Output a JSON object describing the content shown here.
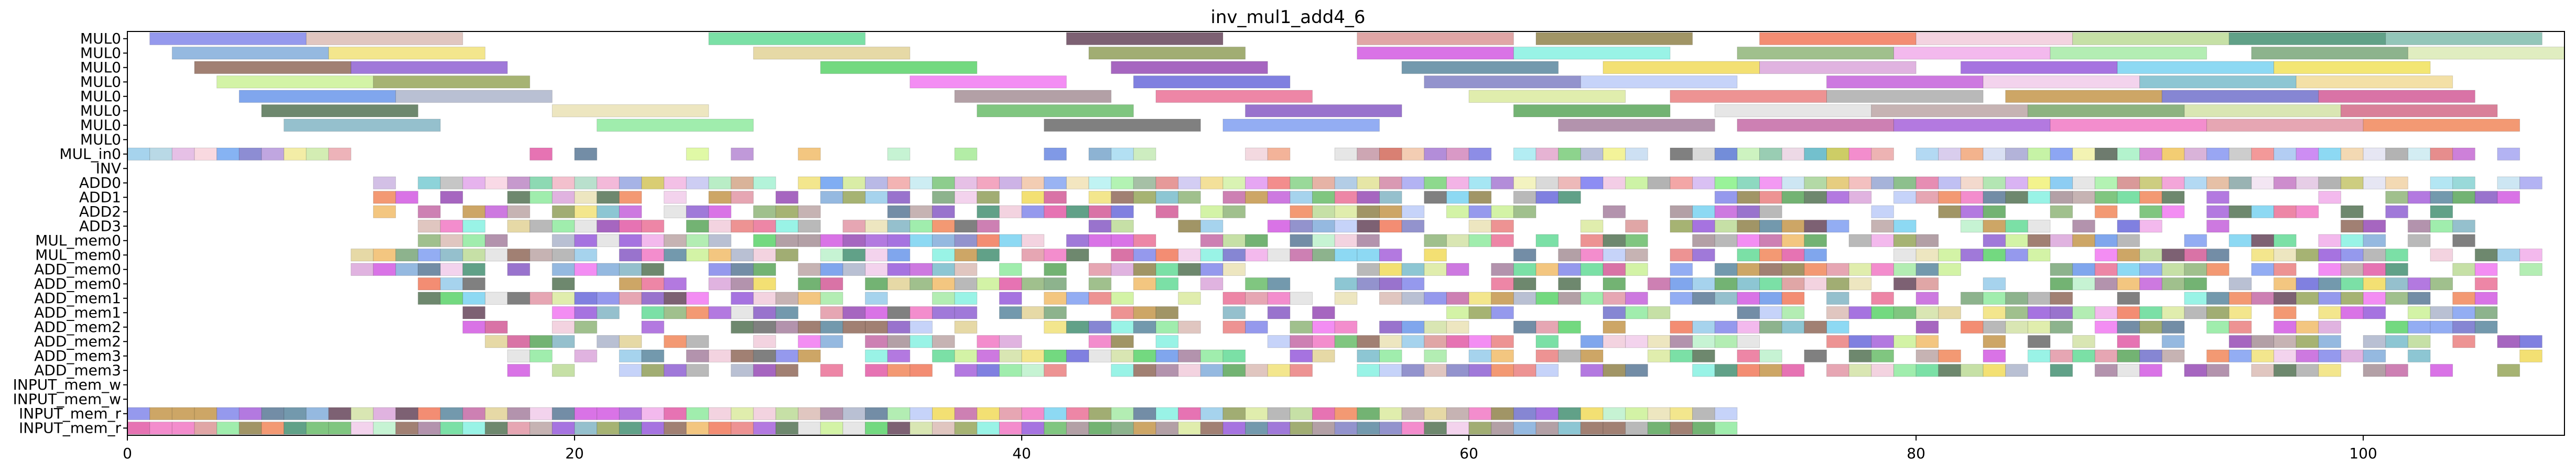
{
  "chart_data": {
    "type": "gantt",
    "title": "inv_mul1_add4_6",
    "xlabel": "",
    "ylabel": "",
    "xlim": [
      0,
      109
    ],
    "x_ticks": [
      0,
      20,
      40,
      60,
      80,
      100
    ],
    "grid": false,
    "legend": "none",
    "rows": [
      "MUL0",
      "MUL0",
      "MUL0",
      "MUL0",
      "MUL0",
      "MUL0",
      "MUL0",
      "MUL0",
      "MUL_in0",
      "INV",
      "ADD0",
      "ADD1",
      "ADD2",
      "ADD3",
      "MUL_mem0",
      "MUL_mem0",
      "ADD_mem0",
      "ADD_mem0",
      "ADD_mem1",
      "ADD_mem1",
      "ADD_mem2",
      "ADD_mem2",
      "ADD_mem3",
      "ADD_mem3",
      "INPUT_mem_w",
      "INPUT_mem_w",
      "INPUT_mem_r",
      "INPUT_mem_r"
    ],
    "series": [
      {
        "row": 0,
        "intervals": [
          [
            1,
            8,
            "#7b80e8"
          ],
          [
            8,
            15,
            "#d8b8b0"
          ],
          [
            26,
            33,
            "#5ad890"
          ],
          [
            42,
            49,
            "#5c3a50"
          ],
          [
            55,
            62,
            "#d89090"
          ],
          [
            63,
            70,
            "#8a7a40"
          ],
          [
            73,
            80,
            "#f07050"
          ],
          [
            80,
            87,
            "#f0c8d8"
          ],
          [
            87,
            94,
            "#b8d890"
          ],
          [
            94,
            101,
            "#3a8a6a"
          ],
          [
            101,
            108,
            "#78b8a8"
          ]
        ]
      },
      {
        "row": 1,
        "intervals": [
          [
            2,
            9,
            "#7aa8d8"
          ],
          [
            9,
            16,
            "#f0e070"
          ],
          [
            28,
            35,
            "#e0d090"
          ],
          [
            43,
            50,
            "#8a9850"
          ],
          [
            55,
            62,
            "#d050e0"
          ],
          [
            62,
            69,
            "#80f0e0"
          ],
          [
            72,
            79,
            "#88b070"
          ],
          [
            79,
            86,
            "#f0a8e8"
          ],
          [
            86,
            93,
            "#a0e8a0"
          ],
          [
            95,
            102,
            "#70a070"
          ],
          [
            102,
            109,
            "#d8e8b0"
          ]
        ]
      },
      {
        "row": 2,
        "intervals": [
          [
            3,
            10,
            "#8a6050"
          ],
          [
            10,
            17,
            "#8858d0"
          ],
          [
            31,
            38,
            "#50d060"
          ],
          [
            44,
            51,
            "#9040b0"
          ],
          [
            57,
            64,
            "#508098"
          ],
          [
            66,
            73,
            "#f0d850"
          ],
          [
            73,
            80,
            "#d8a0d8"
          ],
          [
            82,
            89,
            "#9050d8"
          ],
          [
            89,
            96,
            "#70d0f0"
          ],
          [
            96,
            103,
            "#f0e050"
          ]
        ]
      },
      {
        "row": 3,
        "intervals": [
          [
            4,
            11,
            "#c8f090"
          ],
          [
            11,
            18,
            "#90a050"
          ],
          [
            35,
            42,
            "#f070f0"
          ],
          [
            45,
            52,
            "#6060d8"
          ],
          [
            58,
            65,
            "#7878c0"
          ],
          [
            65,
            72,
            "#b8c8f8"
          ],
          [
            76,
            83,
            "#c058d8"
          ],
          [
            83,
            90,
            "#f0c8e8"
          ],
          [
            90,
            97,
            "#70b8c8"
          ],
          [
            97,
            104,
            "#f0d890"
          ]
        ]
      },
      {
        "row": 4,
        "intervals": [
          [
            5,
            12,
            "#6090e8"
          ],
          [
            12,
            19,
            "#a8b0c8"
          ],
          [
            37,
            44,
            "#a08890"
          ],
          [
            46,
            53,
            "#e86890"
          ],
          [
            60,
            67,
            "#d8e898"
          ],
          [
            69,
            76,
            "#e87878"
          ],
          [
            76,
            83,
            "#a8a8a8"
          ],
          [
            84,
            91,
            "#c09040"
          ],
          [
            91,
            98,
            "#6868c8"
          ],
          [
            98,
            105,
            "#d05090"
          ]
        ]
      },
      {
        "row": 5,
        "intervals": [
          [
            6,
            13,
            "#4a6a4a"
          ],
          [
            19,
            26,
            "#e8e0b0"
          ],
          [
            38,
            45,
            "#60b860"
          ],
          [
            50,
            57,
            "#8050c0"
          ],
          [
            62,
            69,
            "#50a050"
          ],
          [
            71,
            78,
            "#e0e0e0"
          ],
          [
            78,
            85,
            "#b8a0a0"
          ],
          [
            85,
            92,
            "#70a060"
          ],
          [
            92,
            99,
            "#d0e0a0"
          ],
          [
            99,
            106,
            "#d06080"
          ]
        ]
      },
      {
        "row": 6,
        "intervals": [
          [
            7,
            14,
            "#7ab0c0"
          ],
          [
            21,
            28,
            "#88e898"
          ],
          [
            41,
            48,
            "#606060"
          ],
          [
            49,
            56,
            "#7898f0"
          ],
          [
            64,
            71,
            "#a07898"
          ],
          [
            72,
            79,
            "#c060a0"
          ],
          [
            79,
            86,
            "#a058d8"
          ],
          [
            86,
            93,
            "#f070c0"
          ],
          [
            93,
            100,
            "#e090a0"
          ],
          [
            100,
            107,
            "#f08050"
          ]
        ]
      },
      {
        "row": 8,
        "ticks": [
          [
            0,
            "#90c8e8"
          ],
          [
            1,
            "#a8d0e0"
          ],
          [
            2,
            "#e0b0e0"
          ],
          [
            3,
            "#f8d0d8"
          ],
          [
            4,
            "#68a0f0"
          ],
          [
            5,
            "#7070c8"
          ],
          [
            6,
            "#b090d8"
          ],
          [
            7,
            "#f0e890"
          ],
          [
            8,
            "#c8e8a0"
          ],
          [
            9,
            "#e8a0a8"
          ],
          [
            18,
            "#e050a0"
          ],
          [
            20,
            "#507090"
          ],
          [
            25,
            "#d8f890"
          ],
          [
            27,
            "#b080d0"
          ],
          [
            30,
            "#f0b860"
          ],
          [
            34,
            "#b8f0c8"
          ],
          [
            37,
            "#a0e890"
          ],
          [
            41,
            "#6080e0"
          ],
          [
            43,
            "#70a0c8"
          ],
          [
            44,
            "#a0d8f0"
          ],
          [
            45,
            "#c0e8b0"
          ],
          [
            50,
            "#f0d0d8"
          ],
          [
            51,
            "#f0a080"
          ],
          [
            54,
            "#e0e0e0"
          ],
          [
            55,
            "#c090a0"
          ],
          [
            56,
            "#d06050"
          ],
          [
            57,
            "#f0c0a0"
          ],
          [
            58,
            "#a070d0"
          ],
          [
            59,
            "#d080b8"
          ],
          [
            60,
            "#7070e0"
          ],
          [
            62,
            "#a0e8f0"
          ],
          [
            63,
            "#e0a0c8"
          ],
          [
            64,
            "#70c870"
          ],
          [
            65,
            "#a8b0d0"
          ],
          [
            66,
            "#f0f080"
          ],
          [
            67,
            "#c0d8f0"
          ],
          [
            69,
            "#606060"
          ],
          [
            70,
            "#d0d0d0"
          ],
          [
            71,
            "#5070d0"
          ],
          [
            72,
            "#c0f0b0"
          ],
          [
            73,
            "#80c0a0"
          ],
          [
            74,
            "#e8d0e0"
          ],
          [
            75,
            "#50b0c0"
          ],
          [
            76,
            "#c0c040"
          ],
          [
            77,
            "#f070c0"
          ],
          [
            78,
            "#e8a0a0"
          ],
          [
            80,
            "#a0d0f0"
          ],
          [
            81,
            "#d0c0e8"
          ],
          [
            82,
            "#f0a070"
          ],
          [
            83,
            "#d0d8f0"
          ],
          [
            84,
            "#a0a0d0"
          ],
          [
            85,
            "#b8f090"
          ],
          [
            86,
            "#7090f0"
          ],
          [
            87,
            "#f0f0a0"
          ],
          [
            88,
            "#4a5a4a"
          ],
          [
            89,
            "#a0f0c0"
          ],
          [
            90,
            "#d070d0"
          ],
          [
            91,
            "#f0c050"
          ],
          [
            92,
            "#d0a0d0"
          ],
          [
            93,
            "#8090f0"
          ],
          [
            94,
            "#c0c0c0"
          ],
          [
            95,
            "#f08080"
          ],
          [
            96,
            "#a0c0f0"
          ],
          [
            97,
            "#c070f0"
          ],
          [
            98,
            "#70d0f0"
          ],
          [
            99,
            "#f0d0a0"
          ],
          [
            100,
            "#e0e0f0"
          ],
          [
            101,
            "#a0a0a0"
          ],
          [
            102,
            "#c8e8f0"
          ],
          [
            103,
            "#e07070"
          ],
          [
            104,
            "#c060d0"
          ],
          [
            106,
            "#a0a0f0"
          ]
        ]
      }
    ],
    "dense_rows": {
      "ADD0": [
        [
          11,
          "#c8b0e0"
        ],
        [
          13,
          "#70c8d0"
        ],
        [
          14,
          "#b8b8b8"
        ],
        [
          15,
          "#e0a0e8"
        ],
        [
          16,
          "#f8d0e0"
        ],
        [
          17,
          "#b880c0"
        ],
        [
          18,
          "#70d0a0"
        ],
        [
          19,
          "#f0b0c0"
        ],
        [
          20,
          "#a8d8c0"
        ],
        [
          21,
          "#f0a8d0"
        ],
        [
          22,
          "#90a0e0"
        ],
        [
          23,
          "#d0c050"
        ],
        [
          24,
          "#f0b0e0"
        ],
        [
          25,
          "#c0c0f0"
        ],
        [
          26,
          "#a8e8b8"
        ],
        [
          27,
          "#d0a080"
        ],
        [
          28,
          "#a0f0d0"
        ],
        [
          30,
          "#f0e070"
        ],
        [
          31,
          "#6098f0"
        ],
        [
          32,
          "#d0e890"
        ],
        [
          33,
          "#a8a8e0"
        ],
        [
          34,
          "#f0a0a0"
        ],
        [
          35,
          "#c0e8f0"
        ],
        [
          36,
          "#70c070"
        ],
        [
          37,
          "#e0b0e0"
        ],
        [
          38,
          "#f090b0"
        ],
        [
          39,
          "#c0a0e0"
        ],
        [
          40,
          "#f0c0a0"
        ],
        [
          41,
          "#80a0f0"
        ],
        [
          42,
          "#f0e0b0"
        ],
        [
          43,
          "#b0f0f0"
        ],
        [
          44,
          "#a0f0a0"
        ],
        [
          45,
          "#90b090"
        ],
        [
          46,
          "#e08080"
        ],
        [
          47,
          "#c8c0f0"
        ],
        [
          48,
          "#f0d880"
        ],
        [
          49,
          "#d0f0a0"
        ],
        [
          50,
          "#e090f0"
        ],
        [
          51,
          "#f07070"
        ],
        [
          52,
          "#80d080"
        ],
        [
          53,
          "#e0a090"
        ],
        [
          54,
          "#a0c0e0"
        ],
        [
          55,
          "#e0e090"
        ],
        [
          56,
          "#d080a0"
        ],
        [
          57,
          "#a0a0f0"
        ],
        [
          58,
          "#70d070"
        ],
        [
          59,
          "#f0a0e0"
        ],
        [
          60,
          "#90e0f0"
        ],
        [
          61,
          "#a070d0"
        ],
        [
          62,
          "#f0f0b0"
        ],
        [
          63,
          "#d0d0d0"
        ],
        [
          64,
          "#e8a8a8"
        ],
        [
          65,
          "#7070f0"
        ],
        [
          66,
          "#f0c0e0"
        ],
        [
          67,
          "#c0f090"
        ],
        [
          68,
          "#a0a0a0"
        ],
        [
          69,
          "#f09090"
        ],
        [
          70,
          "#d0b0f0"
        ],
        [
          71,
          "#80f080"
        ],
        [
          72,
          "#70d0b0"
        ],
        [
          73,
          "#f080f0"
        ],
        [
          74,
          "#c0e0f0"
        ],
        [
          75,
          "#a0d090"
        ],
        [
          76,
          "#e0c060"
        ],
        [
          77,
          "#f0b0b0"
        ],
        [
          78,
          "#90a0d0"
        ],
        [
          79,
          "#70b070"
        ],
        [
          80,
          "#e070a0"
        ],
        [
          81,
          "#b0b0f0"
        ],
        [
          82,
          "#f0d0c0"
        ],
        [
          83,
          "#a0e0a0"
        ],
        [
          84,
          "#d0a0f0"
        ],
        [
          85,
          "#f0f070"
        ],
        [
          86,
          "#70c0f0"
        ],
        [
          87,
          "#e0e0e0"
        ],
        [
          88,
          "#a0f0a0"
        ],
        [
          89,
          "#d08080"
        ],
        [
          90,
          "#c0c060"
        ],
        [
          91,
          "#f090d0"
        ],
        [
          92,
          "#a0d0f0"
        ],
        [
          93,
          "#e0b090"
        ],
        [
          94,
          "#80a0a0"
        ],
        [
          95,
          "#f0e0f0"
        ],
        [
          96,
          "#c070c0"
        ],
        [
          97,
          "#e0c0e0"
        ],
        [
          98,
          "#a0a0a0"
        ],
        [
          99,
          "#c0c060"
        ],
        [
          100,
          "#e0e0f0"
        ],
        [
          101,
          "#f0d0a0"
        ],
        [
          103,
          "#a0e0f0"
        ],
        [
          104,
          "#80d0d0"
        ],
        [
          106,
          "#c0e0f0"
        ],
        [
          107,
          "#a0a0f0"
        ]
      ]
    },
    "dense_fill": {
      "rows_from": 11,
      "rows_to": 23,
      "start": 11,
      "end": 107,
      "row_ranges": [
        [
          11,
          107
        ],
        [
          11,
          104
        ],
        [
          13,
          106
        ],
        [
          13,
          108
        ],
        [
          10,
          108
        ],
        [
          10,
          108
        ],
        [
          13,
          106
        ],
        [
          13,
          106
        ],
        [
          15,
          106
        ],
        [
          15,
          106
        ],
        [
          16,
          108
        ],
        [
          16,
          108
        ],
        [
          17,
          108
        ],
        [
          17,
          108
        ]
      ],
      "palette": [
        "#7b80e8",
        "#d8b8b0",
        "#5ad890",
        "#5c3a50",
        "#d89090",
        "#8a7a40",
        "#f07050",
        "#f0c8d8",
        "#b8d890",
        "#3a8a6a",
        "#7aa8d8",
        "#f0e070",
        "#e0d090",
        "#8a9850",
        "#d050e0",
        "#80f0e0",
        "#88b070",
        "#f0a8e8",
        "#a0e8a0",
        "#70a070",
        "#8a6050",
        "#8858d0",
        "#50d060",
        "#9040b0",
        "#508098",
        "#f0d850",
        "#d8a0d8",
        "#9050d8",
        "#70d0f0",
        "#c8f090",
        "#90a050",
        "#f070f0",
        "#6060d8",
        "#7878c0",
        "#b8c8f8",
        "#c058d8",
        "#f0c8e8",
        "#70b8c8",
        "#6090e8",
        "#a8b0c8",
        "#a08890",
        "#e86890",
        "#d8e898",
        "#e87878",
        "#a8a8a8",
        "#c09040",
        "#6868c8",
        "#d05090",
        "#4a6a4a",
        "#e8e0b0",
        "#60b860",
        "#8050c0",
        "#50a050",
        "#e0e0e0",
        "#b8a0a0",
        "#d0e0a0",
        "#7ab0c0",
        "#88e898",
        "#606060",
        "#7898f0",
        "#a07898",
        "#c060a0",
        "#a058d8",
        "#f070c0",
        "#e090a0",
        "#f08050",
        "#90c8e8",
        "#e050a0",
        "#507090",
        "#f0b860",
        "#b8f0c8"
      ],
      "density": 0.72
    },
    "input_rows": {
      "rows": [
        26,
        27
      ],
      "start": 0,
      "end": 72
    }
  }
}
